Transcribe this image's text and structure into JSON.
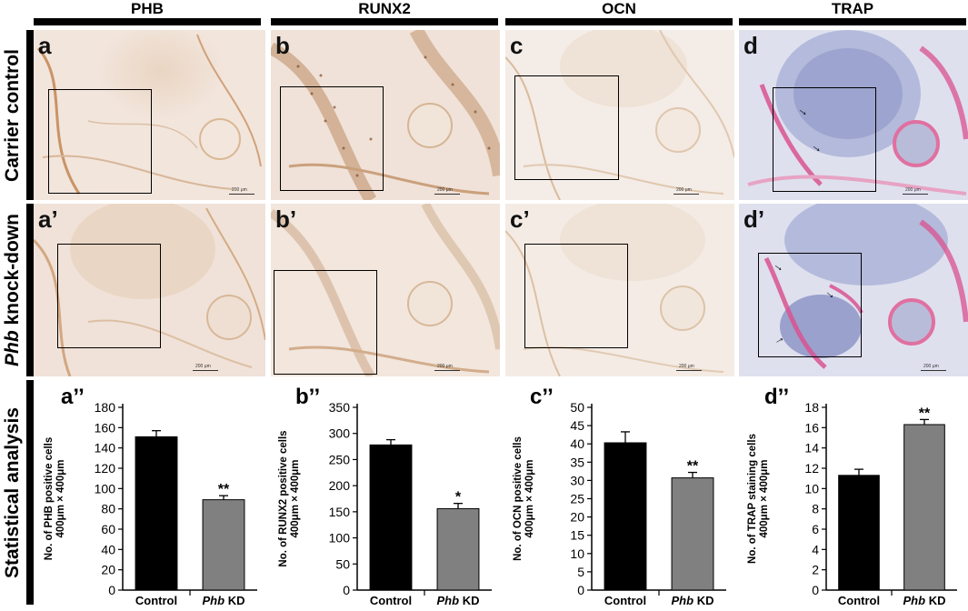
{
  "column_titles": [
    "PHB",
    "RUNX2",
    "OCN",
    "TRAP"
  ],
  "row_labels": {
    "row1": "Carrier control",
    "row2_italic": "Phb",
    "row2_rest": " knock-down",
    "row3": "Statistical analysis"
  },
  "panels_row1": [
    "a",
    "b",
    "c",
    "d"
  ],
  "panels_row2": [
    "a’",
    "b’",
    "c’",
    "d’"
  ],
  "scale_label": "200 μm",
  "stain_colors": {
    "ihc_background": "#f3e6de",
    "dab_brown": "#b07a45",
    "trap_background": "#dcdcec",
    "trap_pink": "#d9528f",
    "hematoxylin_blue": "#6f78b0"
  },
  "chart_data": [
    {
      "type": "bar",
      "panel_label": "a’’",
      "categories": [
        "Control",
        "Phb KD"
      ],
      "values": [
        151,
        89
      ],
      "errors": [
        6,
        4
      ],
      "significance": [
        "",
        "**"
      ],
      "ylabel_line1": "No. of PHB positive cells",
      "ylabel_line2": "400μm × 400μm",
      "ylim": [
        0,
        180
      ],
      "yticks": [
        0,
        20,
        40,
        60,
        80,
        100,
        120,
        140,
        160,
        180
      ],
      "colors": [
        "#000000",
        "#808080"
      ]
    },
    {
      "type": "bar",
      "panel_label": "b’’",
      "categories": [
        "Control",
        "Phb KD"
      ],
      "values": [
        278,
        156
      ],
      "errors": [
        10,
        10
      ],
      "significance": [
        "",
        "*"
      ],
      "ylabel_line1": "No. of RUNX2 positive cells",
      "ylabel_line2": "400μm × 400μm",
      "ylim": [
        0,
        350
      ],
      "yticks": [
        0,
        50,
        100,
        150,
        200,
        250,
        300,
        350
      ],
      "colors": [
        "#000000",
        "#808080"
      ]
    },
    {
      "type": "bar",
      "panel_label": "c’’",
      "categories": [
        "Control",
        "Phb KD"
      ],
      "values": [
        40.3,
        30.7
      ],
      "errors": [
        3,
        1.5
      ],
      "significance": [
        "",
        "**"
      ],
      "ylabel_line1": "No. of OCN positive cells",
      "ylabel_line2": "400μm × 400μm",
      "ylim": [
        0,
        50
      ],
      "yticks": [
        0,
        5,
        10,
        15,
        20,
        25,
        30,
        35,
        40,
        45,
        50
      ],
      "colors": [
        "#000000",
        "#808080"
      ]
    },
    {
      "type": "bar",
      "panel_label": "d’’",
      "categories": [
        "Control",
        "Phb KD"
      ],
      "values": [
        11.3,
        16.3
      ],
      "errors": [
        0.6,
        0.5
      ],
      "significance": [
        "",
        "**"
      ],
      "ylabel_line1": "No. of TRAP staining cells",
      "ylabel_line2": "400μm × 400μm",
      "ylim": [
        0,
        18
      ],
      "yticks": [
        0,
        2,
        4,
        6,
        8,
        10,
        12,
        14,
        16,
        18
      ],
      "colors": [
        "#000000",
        "#808080"
      ]
    }
  ]
}
